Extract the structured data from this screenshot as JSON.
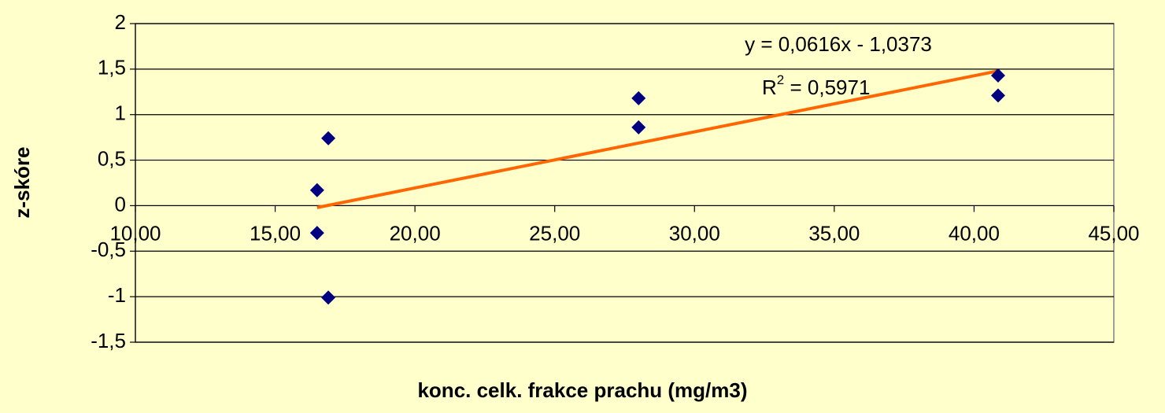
{
  "chart_data": {
    "type": "scatter",
    "x_label": "konc. celk. frakce prachu (mg/m3)",
    "y_label": "z-skóre",
    "x": [
      16.5,
      16.5,
      16.9,
      16.9,
      28.0,
      28.0,
      40.86,
      40.86
    ],
    "values": [
      0.17,
      -0.3,
      0.74,
      -1.01,
      1.18,
      0.86,
      1.43,
      1.21
    ],
    "color": "#000080",
    "trendline": {
      "color": "#ff6600",
      "x": [
        16.5,
        40.86
      ],
      "values": [
        -0.021,
        1.48
      ]
    },
    "equation": "y = 0,0616x - 1,0373",
    "r2": {
      "base": "R",
      "sup": "2",
      "rest": " = 0,5971"
    },
    "xlim": [
      10,
      45
    ],
    "xticks": [
      {
        "value": 10,
        "label": "10,00"
      },
      {
        "value": 15,
        "label": "15,00"
      },
      {
        "value": 20,
        "label": "20,00"
      },
      {
        "value": 25,
        "label": "25,00"
      },
      {
        "value": 30,
        "label": "30,00"
      },
      {
        "value": 35,
        "label": "35,00"
      },
      {
        "value": 40,
        "label": "40,00"
      },
      {
        "value": 45,
        "label": "45,00"
      }
    ],
    "ylim": [
      -1.5,
      2
    ],
    "yticks": [
      {
        "value": -1.5,
        "label": "-1,5"
      },
      -1,
      {
        "value": -0.5,
        "label": "-0,5"
      },
      0,
      {
        "value": 0.5,
        "label": "0,5"
      },
      1,
      {
        "value": 1.5,
        "label": "1,5"
      },
      2
    ],
    "grid": true
  }
}
